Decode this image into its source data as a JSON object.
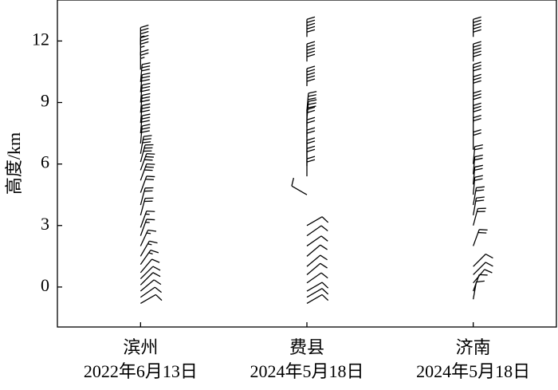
{
  "chart_data": {
    "type": "barbs",
    "ylabel": "高度/km",
    "ylim": [
      -1.95,
      14
    ],
    "yticks": [
      0,
      3,
      6,
      9,
      12
    ],
    "stations": [
      {
        "name": "滨州",
        "date": "2022年6月13日",
        "heights": [
          11.8,
          11.3,
          10.6,
          10.0,
          9.5,
          9.0,
          8.5,
          8.0,
          7.5,
          7.0,
          6.5,
          6.1,
          5.7,
          5.2,
          4.6,
          4.0,
          3.5,
          2.9,
          2.5,
          2.0,
          1.5,
          1.1,
          0.7,
          0.4,
          0.1,
          -0.2,
          -0.5,
          -0.8
        ],
        "speeds": [
          14,
          14,
          10,
          12,
          12,
          12,
          12,
          12,
          12,
          12,
          12,
          12,
          12,
          12,
          8,
          8,
          8,
          6,
          6,
          6,
          6,
          6,
          4,
          4,
          4,
          4,
          4,
          4
        ],
        "directions": [
          0,
          0,
          0,
          5,
          5,
          5,
          5,
          5,
          5,
          5,
          10,
          15,
          20,
          20,
          20,
          15,
          15,
          20,
          20,
          25,
          30,
          35,
          40,
          45,
          45,
          50,
          55,
          60
        ]
      },
      {
        "name": "费县",
        "date": "2024年5月18日",
        "heights": [
          12.2,
          11.0,
          9.8,
          8.6,
          8.2,
          7.8,
          7.3,
          6.8,
          6.3,
          5.9,
          5.4,
          4.5,
          3.0,
          2.5,
          2.0,
          1.5,
          1.0,
          0.6,
          0.2,
          -0.2,
          -0.5,
          -0.8
        ],
        "speeds": [
          20,
          20,
          20,
          12,
          12,
          8,
          8,
          8,
          8,
          8,
          8,
          4,
          4,
          4,
          4,
          4,
          4,
          4,
          4,
          4,
          4,
          4
        ],
        "directions": [
          0,
          0,
          0,
          5,
          5,
          0,
          0,
          0,
          0,
          0,
          0,
          300,
          60,
          55,
          55,
          50,
          50,
          50,
          55,
          60,
          60,
          60
        ]
      },
      {
        "name": "济南",
        "date": "2024年5月18日",
        "heights": [
          12.2,
          11.0,
          10.0,
          9.4,
          8.6,
          8.0,
          7.4,
          6.7,
          6.0,
          5.5,
          5.0,
          4.5,
          4.0,
          3.5,
          3.0,
          2.0,
          1.0,
          0.6,
          0.2,
          -0.2,
          -0.6
        ],
        "speeds": [
          20,
          20,
          12,
          12,
          12,
          12,
          8,
          8,
          8,
          8,
          8,
          8,
          8,
          8,
          8,
          8,
          4,
          4,
          4,
          4,
          4
        ],
        "directions": [
          0,
          0,
          0,
          0,
          0,
          0,
          0,
          0,
          5,
          5,
          5,
          5,
          10,
          10,
          15,
          20,
          45,
          45,
          40,
          20,
          10
        ]
      }
    ]
  }
}
